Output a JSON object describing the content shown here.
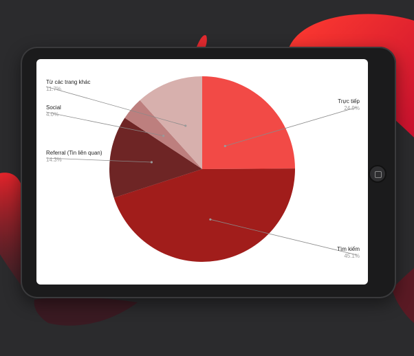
{
  "chart_data": {
    "type": "pie",
    "slices": [
      {
        "label": "Trực tiếp",
        "percent": "24.9%",
        "value": 24.9,
        "color": "#f24a46"
      },
      {
        "label": "Tìm kiếm",
        "percent": "45.1%",
        "value": 45.1,
        "color": "#a11d1b"
      },
      {
        "label": "Referral (Tin liên quan)",
        "percent": "14.3%",
        "value": 14.3,
        "color": "#6e2525"
      },
      {
        "label": "Social",
        "percent": "4.0%",
        "value": 4.0,
        "color": "#bd7f7e"
      },
      {
        "label": "Từ các trang khác",
        "percent": "11.7%",
        "value": 11.7,
        "color": "#d7b0ad"
      }
    ],
    "legend": "none",
    "labels": "outside-with-leader-lines"
  }
}
